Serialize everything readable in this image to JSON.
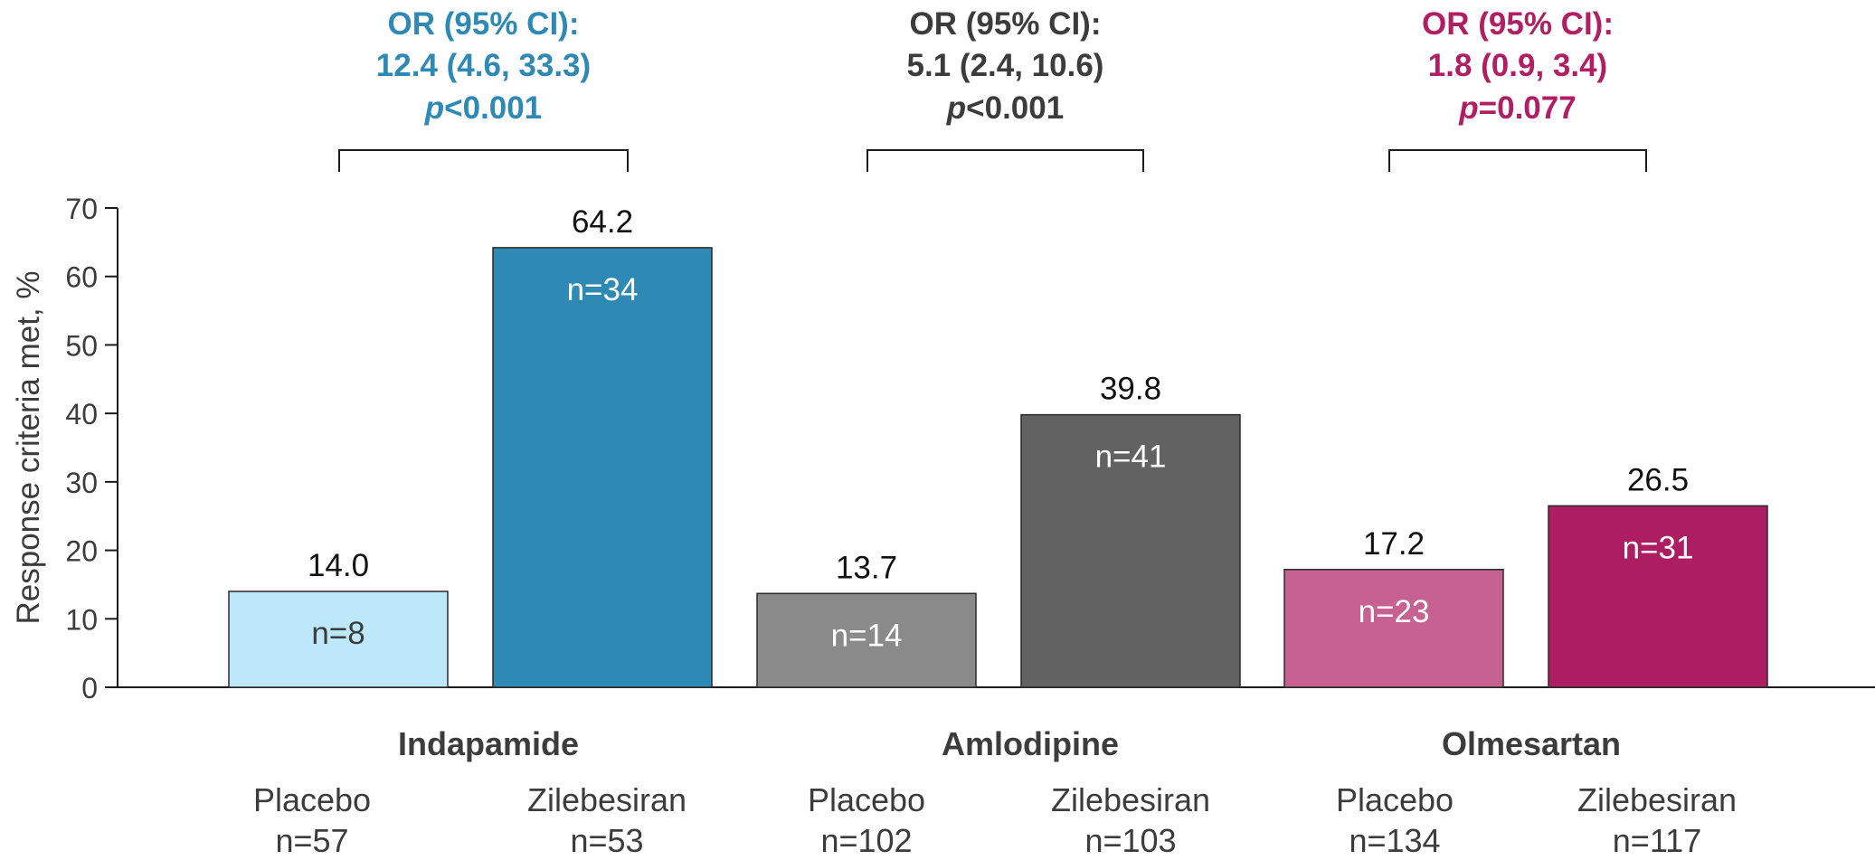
{
  "chart_data": {
    "type": "bar",
    "ylabel": "Response criteria met, %",
    "ylim": [
      0,
      70
    ],
    "yticks": [
      0,
      10,
      20,
      30,
      40,
      50,
      60,
      70
    ],
    "groups": [
      {
        "name": "Indapamide",
        "color": "#2e8ab4",
        "or_title": "OR (95% CI):",
        "or_value": "12.4 (4.6, 33.3)",
        "p_label": "p",
        "p_value": "<0.001",
        "bars": [
          {
            "label": "Placebo",
            "n_total": "n=57",
            "value": 14.0,
            "value_label": "14.0",
            "n_label": "n=8",
            "color": "#bde8fa",
            "text_color": "#3c3c3c"
          },
          {
            "label": "Zilebesiran",
            "n_total": "n=53",
            "value": 64.2,
            "value_label": "64.2",
            "n_label": "n=34",
            "color": "#2e8ab4",
            "text_color": "#ffffff"
          }
        ]
      },
      {
        "name": "Amlodipine",
        "color": "#3c3c3c",
        "or_title": "OR (95% CI):",
        "or_value": "5.1 (2.4, 10.6)",
        "p_label": "p",
        "p_value": "<0.001",
        "bars": [
          {
            "label": "Placebo",
            "n_total": "n=102",
            "value": 13.7,
            "value_label": "13.7",
            "n_label": "n=14",
            "color": "#8a8a8a",
            "text_color": "#ffffff"
          },
          {
            "label": "Zilebesiran",
            "n_total": "n=103",
            "value": 39.8,
            "value_label": "39.8",
            "n_label": "n=41",
            "color": "#626262",
            "text_color": "#ffffff"
          }
        ]
      },
      {
        "name": "Olmesartan",
        "color": "#b01e64",
        "or_title": "OR (95% CI):",
        "or_value": "1.8 (0.9, 3.4)",
        "p_label": "p",
        "p_value": "=0.077",
        "bars": [
          {
            "label": "Placebo",
            "n_total": "n=134",
            "value": 17.2,
            "value_label": "17.2",
            "n_label": "n=23",
            "color": "#c66192",
            "text_color": "#ffffff"
          },
          {
            "label": "Zilebesiran",
            "n_total": "n=117",
            "value": 26.5,
            "value_label": "26.5",
            "n_label": "n=31",
            "color": "#ad1d62",
            "text_color": "#ffffff"
          }
        ]
      }
    ]
  }
}
